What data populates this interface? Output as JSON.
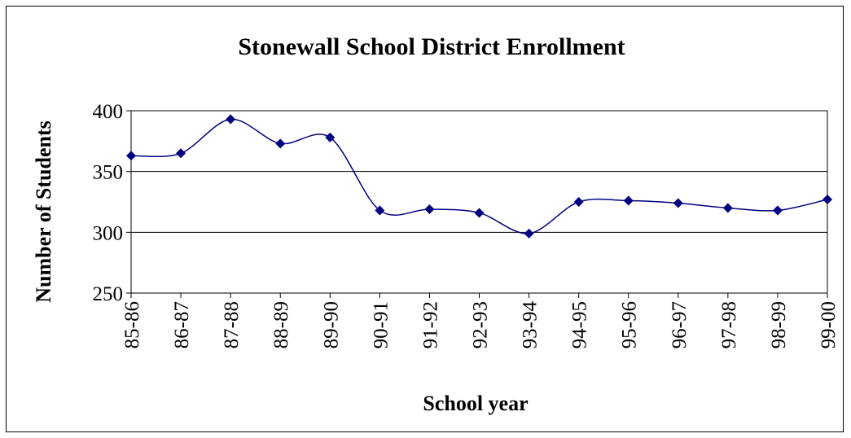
{
  "chart_data": {
    "type": "line",
    "title": "Stonewall School District Enrollment",
    "xlabel": "School year",
    "ylabel": "Number of Students",
    "categories": [
      "85-86",
      "86-87",
      "87-88",
      "88-89",
      "89-90",
      "90-91",
      "91-92",
      "92-93",
      "93-94",
      "94-95",
      "95-96",
      "96-97",
      "97-98",
      "98-99",
      "99-00"
    ],
    "series": [
      {
        "values": [
          363,
          365,
          393,
          373,
          378,
          318,
          319,
          316,
          299,
          325,
          326,
          324,
          320,
          318,
          327
        ],
        "color": "#000080"
      }
    ],
    "ylim": [
      250,
      400
    ],
    "yticks": [
      250,
      300,
      350,
      400
    ],
    "grid": true,
    "smoothed": true,
    "marker": "diamond",
    "legend": "none"
  }
}
